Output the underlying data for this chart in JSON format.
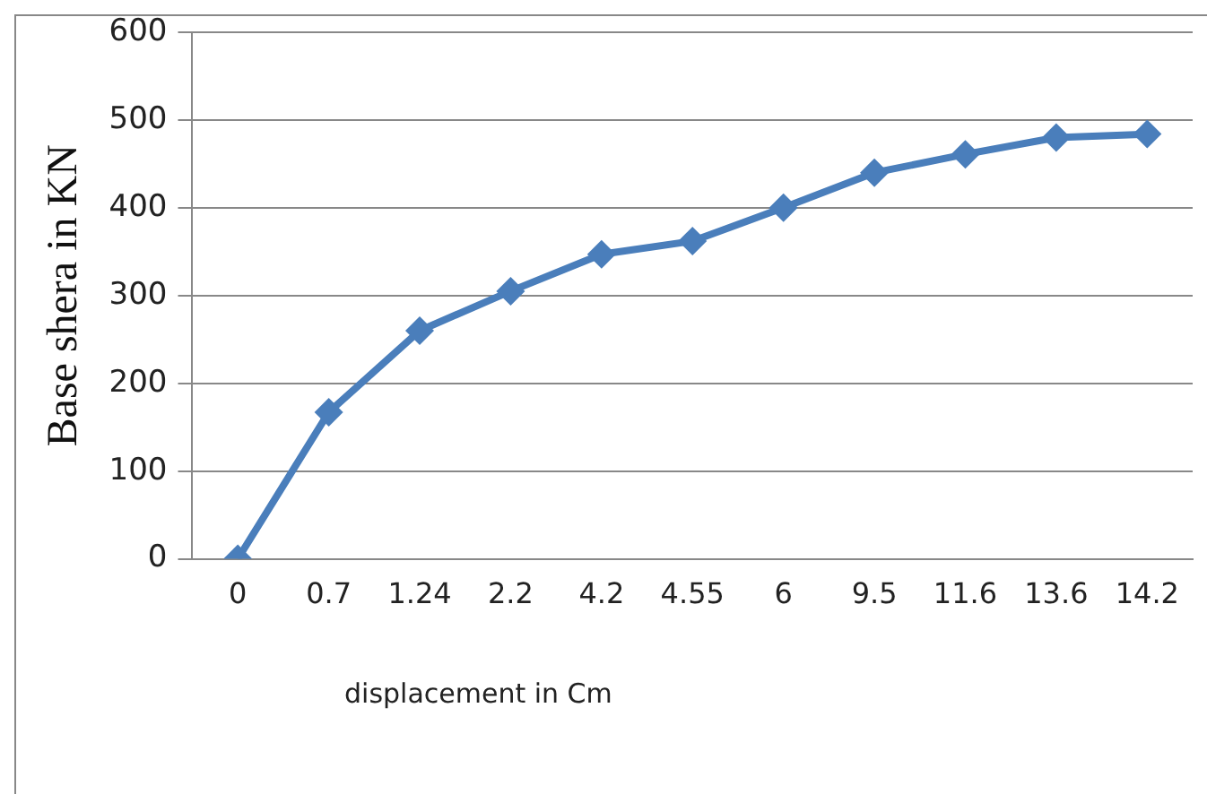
{
  "chart_data": {
    "type": "line",
    "xlabel": "displacement in Cm",
    "ylabel": "Base shera in KN",
    "categories": [
      "0",
      "0.7",
      "1.24",
      "2.2",
      "4.2",
      "4.55",
      "6",
      "9.5",
      "11.6",
      "13.6",
      "14.2"
    ],
    "series": [
      {
        "color": "#4a7ebb",
        "values": [
          0,
          167,
          260,
          305,
          347,
          362,
          400,
          440,
          461,
          480,
          484
        ]
      }
    ],
    "ylim": [
      0,
      600
    ],
    "yticks": [
      0,
      100,
      200,
      300,
      400,
      500,
      600
    ],
    "grid": "y",
    "legend": false,
    "marker": "diamond",
    "line_style": "solid"
  }
}
